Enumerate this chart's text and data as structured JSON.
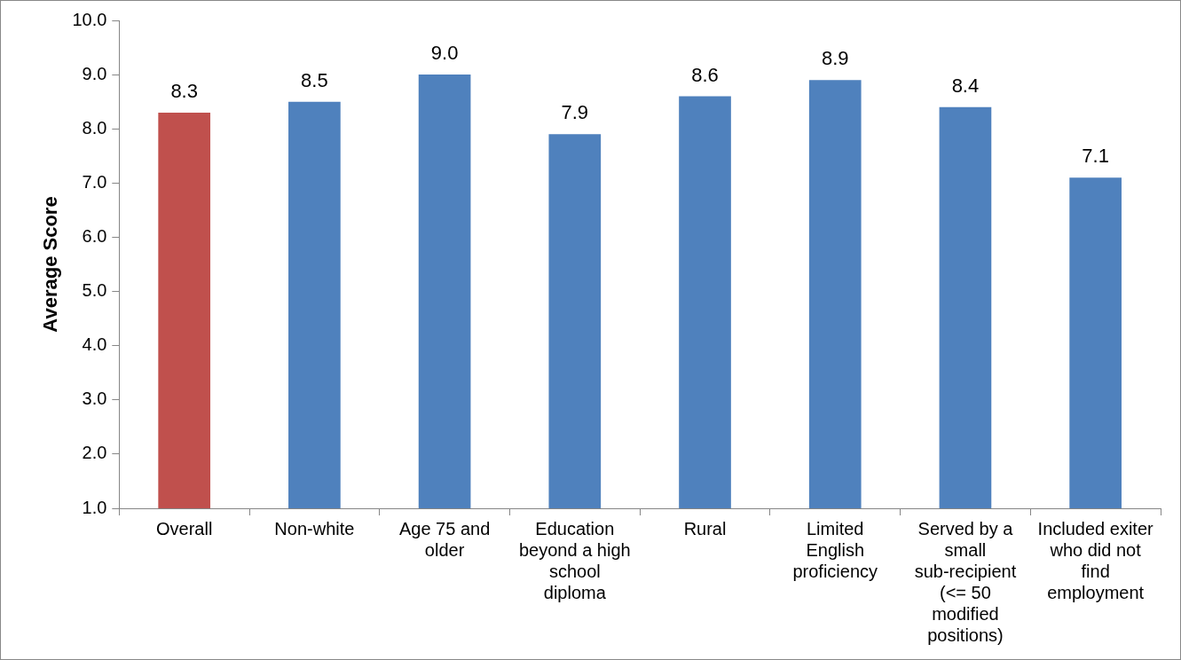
{
  "chart_data": {
    "type": "bar",
    "ylabel": "Average Score",
    "categories": [
      "Overall",
      "Non-white",
      "Age 75 and older",
      "Education beyond a high school diploma",
      "Rural",
      "Limited English proficiency",
      "Served by a small sub-recipient (<= 50 modified positions)",
      "Included exiter who did not find employment"
    ],
    "values": [
      8.3,
      8.5,
      9.0,
      7.9,
      8.6,
      8.9,
      8.4,
      7.1
    ],
    "colors": [
      "#c0504d",
      "#4f81bd",
      "#4f81bd",
      "#4f81bd",
      "#4f81bd",
      "#4f81bd",
      "#4f81bd",
      "#4f81bd"
    ],
    "ylim": [
      1,
      10
    ],
    "yticks": [
      {
        "value": 1,
        "label": "1.0"
      },
      {
        "value": 2,
        "label": "2.0"
      },
      {
        "value": 3,
        "label": "3.0"
      },
      {
        "value": 4,
        "label": "4.0"
      },
      {
        "value": 5,
        "label": "5.0"
      },
      {
        "value": 6,
        "label": "6.0"
      },
      {
        "value": 7,
        "label": "7.0"
      },
      {
        "value": 8,
        "label": "8.0"
      },
      {
        "value": 9,
        "label": "9.0"
      },
      {
        "value": 10,
        "label": "10.0"
      }
    ],
    "value_labels": [
      "8.3",
      "8.5",
      "9.0",
      "7.9",
      "8.6",
      "8.9",
      "8.4",
      "7.1"
    ],
    "legend": false,
    "grid": false
  }
}
